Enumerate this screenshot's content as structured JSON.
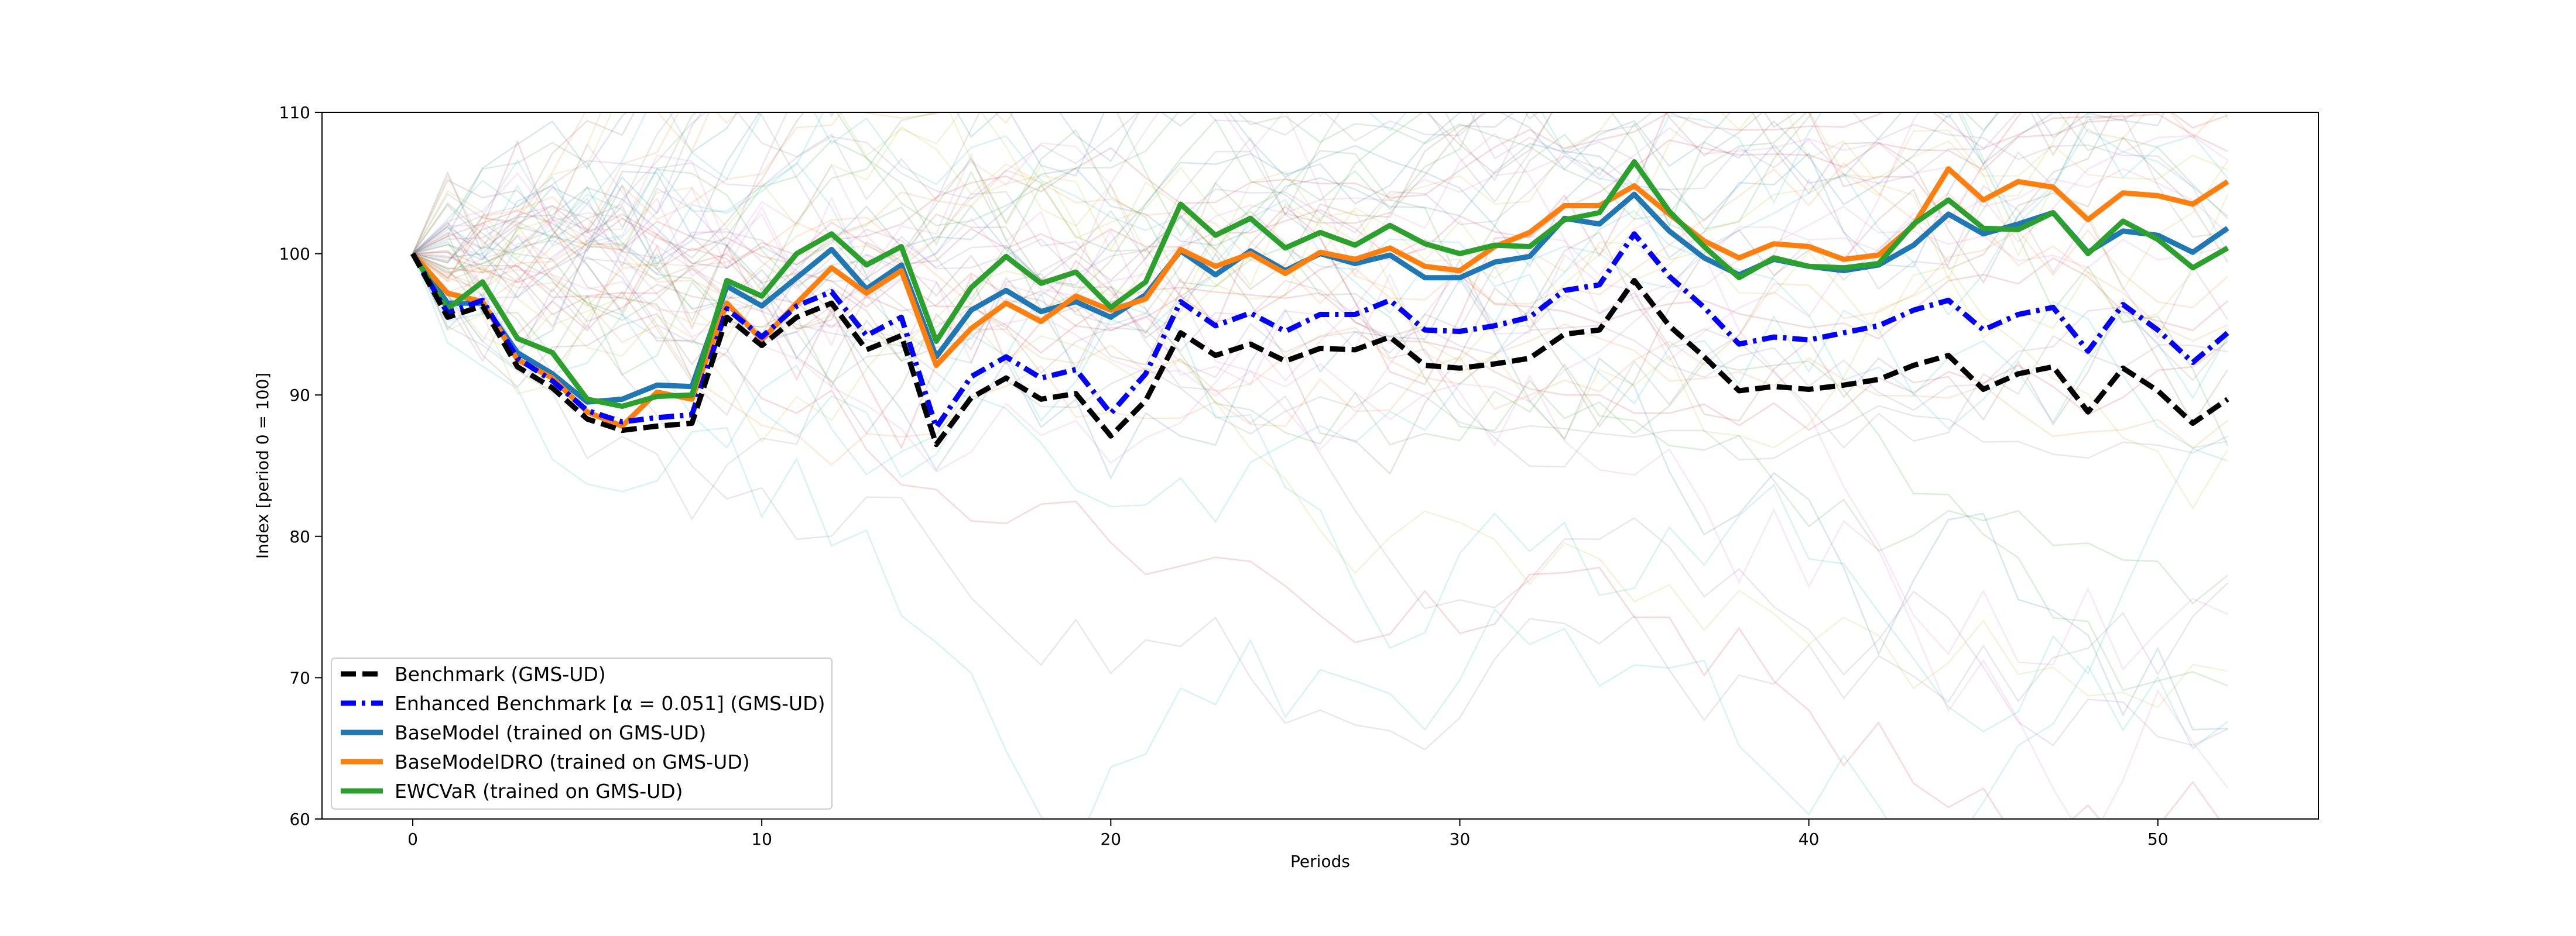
{
  "chart_data": {
    "type": "line",
    "title": "",
    "xlabel": "Periods",
    "ylabel": "Index [period 0 = 100]",
    "xlim": [
      -2.6,
      54.6
    ],
    "ylim": [
      60,
      110
    ],
    "xticks": [
      0,
      10,
      20,
      30,
      40,
      50
    ],
    "yticks": [
      60,
      70,
      80,
      90,
      100,
      110
    ],
    "grid": false,
    "legend_position": "bottom-left",
    "background_paths": {
      "description_visible": "many faint thin colored lines",
      "colors": [
        "#1f77b4",
        "#ff7f0e",
        "#2ca02c",
        "#d62728",
        "#9467bd",
        "#8c564b",
        "#e377c2",
        "#7f7f7f",
        "#bcbd22",
        "#17becf"
      ],
      "count": 60,
      "opacity": 0.18
    },
    "x": [
      0,
      1,
      2,
      3,
      4,
      5,
      6,
      7,
      8,
      9,
      10,
      11,
      12,
      13,
      14,
      15,
      16,
      17,
      18,
      19,
      20,
      21,
      22,
      23,
      24,
      25,
      26,
      27,
      28,
      29,
      30,
      31,
      32,
      33,
      34,
      35,
      36,
      37,
      38,
      39,
      40,
      41,
      42,
      43,
      44,
      45,
      46,
      47,
      48,
      49,
      50,
      51,
      52
    ],
    "series": [
      {
        "name": "Benchmark (GMS-UD)",
        "color": "#000000",
        "style": "dashed",
        "values": [
          100,
          95.5,
          96.3,
          92,
          90.5,
          88.3,
          87.5,
          87.8,
          88,
          95.5,
          93.5,
          95.5,
          96.5,
          93.2,
          94.2,
          86.5,
          89.8,
          91.2,
          89.7,
          90.1,
          87.1,
          89.6,
          94.4,
          92.8,
          93.6,
          92.4,
          93.3,
          93.2,
          94.1,
          92.1,
          91.9,
          92.2,
          92.6,
          94.3,
          94.6,
          98.1,
          94.9,
          92.7,
          90.3,
          90.6,
          90.4,
          90.7,
          91.1,
          92.1,
          92.8,
          90.4,
          91.5,
          92,
          88.8,
          91.9,
          90.3,
          88,
          89.7
        ]
      },
      {
        "name": "Enhanced Benchmark [α = 0.051] (GMS-UD)",
        "color": "#0000ff",
        "style": "dashdot",
        "values": [
          100,
          95.8,
          96.7,
          92.6,
          91,
          88.9,
          88.1,
          88.4,
          88.6,
          96.1,
          94.1,
          96.3,
          97.3,
          94.2,
          95.5,
          87.7,
          91.3,
          92.7,
          91.2,
          91.8,
          88.7,
          91.5,
          96.6,
          94.9,
          95.8,
          94.5,
          95.7,
          95.7,
          96.7,
          94.6,
          94.5,
          94.9,
          95.5,
          97.4,
          97.8,
          101.4,
          98.4,
          96.2,
          93.6,
          94.1,
          93.9,
          94.4,
          94.9,
          96,
          96.7,
          94.6,
          95.7,
          96.2,
          93.1,
          96.4,
          94.6,
          92.3,
          94.4
        ]
      },
      {
        "name": "BaseModel (trained on GMS-UD)",
        "color": "#1f77b4",
        "style": "solid",
        "values": [
          100,
          96.5,
          96.5,
          93,
          91.5,
          89.5,
          89.7,
          90.7,
          90.6,
          97.7,
          96.3,
          98.3,
          100.3,
          97.5,
          99.2,
          92.7,
          96,
          97.4,
          95.9,
          96.6,
          95.5,
          97.1,
          100.2,
          98.5,
          100.2,
          98.8,
          100,
          99.3,
          99.9,
          98.3,
          98.3,
          99.4,
          99.8,
          102.5,
          102.1,
          104.2,
          101.6,
          99.7,
          98.5,
          99.6,
          99.1,
          98.8,
          99.2,
          100.6,
          102.8,
          101.4,
          102.1,
          102.9,
          100.1,
          101.6,
          101.3,
          100.1,
          101.8
        ]
      },
      {
        "name": "BaseModelDRO (trained on GMS-UD)",
        "color": "#ff7f0e",
        "style": "solid",
        "values": [
          100,
          97.2,
          96.6,
          92.5,
          91.2,
          88.8,
          87.8,
          90.2,
          89.7,
          96.5,
          93.9,
          96.5,
          99,
          97.2,
          98.8,
          92.1,
          94.7,
          96.5,
          95.2,
          97,
          96,
          96.8,
          100.3,
          99.1,
          100,
          98.6,
          100.1,
          99.6,
          100.4,
          99.1,
          98.8,
          100.5,
          101.5,
          103.4,
          103.4,
          104.8,
          102.8,
          100.9,
          99.7,
          100.7,
          100.5,
          99.6,
          99.9,
          102,
          106,
          103.8,
          105.1,
          104.7,
          102.4,
          104.3,
          104.1,
          103.5,
          105.1
        ]
      },
      {
        "name": "EWCVaR (trained on GMS-UD)",
        "color": "#2ca02c",
        "style": "solid",
        "values": [
          100,
          96.1,
          98,
          94,
          93,
          89.7,
          89.2,
          89.9,
          90,
          98.1,
          97,
          100,
          101.4,
          99.2,
          100.5,
          93.8,
          97.6,
          99.8,
          97.9,
          98.7,
          96.2,
          98,
          103.5,
          101.3,
          102.5,
          100.4,
          101.5,
          100.6,
          102,
          100.7,
          100,
          100.6,
          100.5,
          102.4,
          102.9,
          106.5,
          103,
          100.5,
          98.3,
          99.7,
          99.1,
          99,
          99.3,
          102.1,
          103.8,
          101.8,
          101.7,
          102.9,
          100,
          102.3,
          101,
          99,
          100.4
        ]
      }
    ]
  }
}
